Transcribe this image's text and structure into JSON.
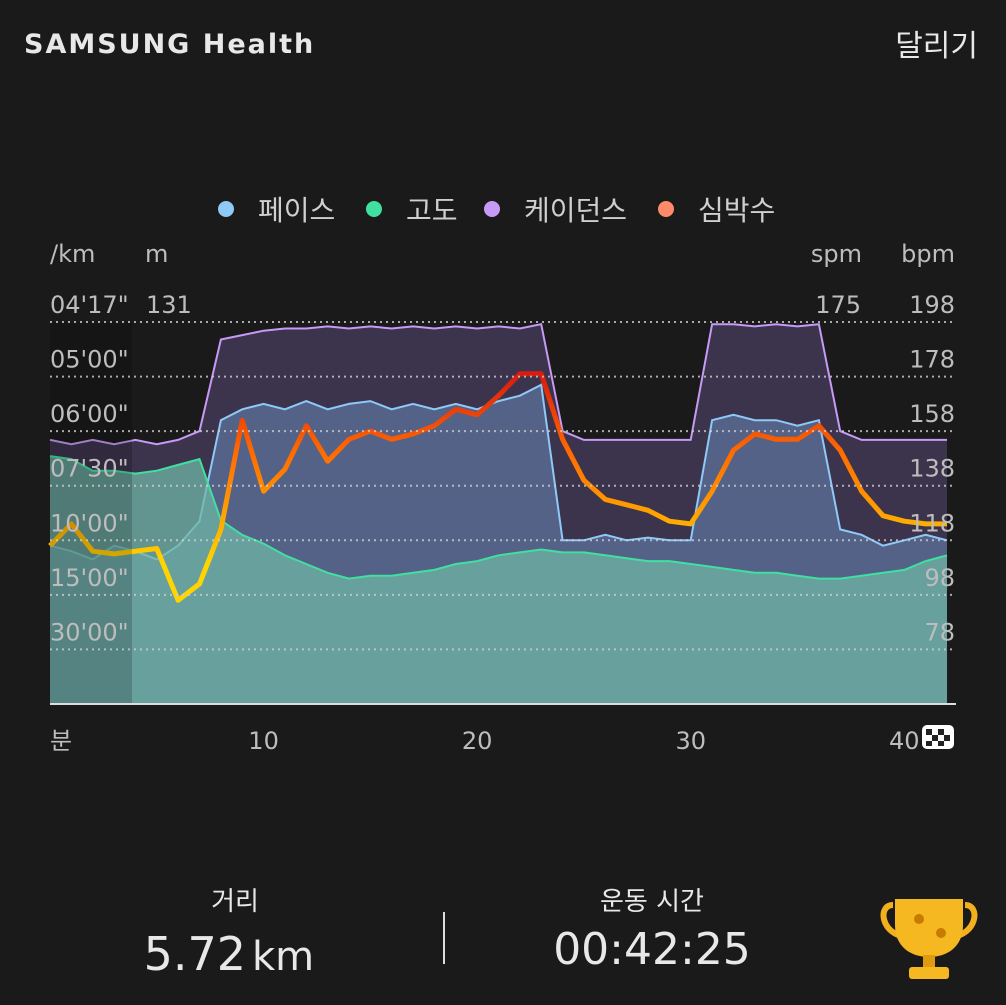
{
  "header": {
    "brand": "SAMSUNG Health",
    "activity": "달리기"
  },
  "chart_data": {
    "type": "line",
    "x": [
      0,
      1,
      2,
      3,
      4,
      5,
      6,
      7,
      8,
      9,
      10,
      11,
      12,
      13,
      14,
      15,
      16,
      17,
      18,
      19,
      20,
      21,
      22,
      23,
      24,
      25,
      26,
      27,
      28,
      29,
      30,
      31,
      32,
      33,
      34,
      35,
      36,
      37,
      38,
      39,
      40,
      41,
      42
    ],
    "xlim": [
      0,
      42.42
    ],
    "xticks": [
      10,
      20,
      30,
      40
    ],
    "x_label": "분",
    "series": [
      {
        "name": "케이던스",
        "unit": "spm",
        "axis": "spm",
        "color": "#c79af5",
        "values": [
          121,
          119,
          121,
          119,
          121,
          119,
          121,
          125,
          167,
          169,
          171,
          172,
          172,
          173,
          172,
          173,
          172,
          173,
          172,
          173,
          172,
          173,
          172,
          174,
          125,
          121,
          121,
          121,
          121,
          121,
          121,
          174,
          174,
          173,
          174,
          173,
          174,
          125,
          121,
          121,
          121,
          121,
          121
        ]
      },
      {
        "name": "페이스",
        "unit": "/km",
        "axis": "y",
        "color": "#8ec9f7",
        "values": [
          5.8,
          5.6,
          5.3,
          5.8,
          5.6,
          5.3,
          5.8,
          6.7,
          10.4,
          10.8,
          11.0,
          10.8,
          11.1,
          10.8,
          11.0,
          11.1,
          10.8,
          11.0,
          10.8,
          11.0,
          10.8,
          11.1,
          11.3,
          11.7,
          6.0,
          6.0,
          6.2,
          6.0,
          6.1,
          6.0,
          6.0,
          10.4,
          10.6,
          10.4,
          10.4,
          10.2,
          10.4,
          6.4,
          6.2,
          5.8,
          6.0,
          6.2,
          6.0
        ]
      },
      {
        "name": "고도",
        "unit": "m",
        "axis": "m",
        "color": "#3fe0a0",
        "values": [
          85,
          84,
          80,
          80,
          79,
          80,
          82,
          84,
          63,
          58,
          55,
          51,
          48,
          45,
          43,
          44,
          44,
          45,
          46,
          48,
          49,
          51,
          52,
          53,
          52,
          52,
          51,
          50,
          49,
          49,
          48,
          47,
          46,
          45,
          45,
          44,
          43,
          43,
          44,
          45,
          46,
          49,
          51
        ]
      },
      {
        "name": "심박수",
        "unit": "bpm",
        "axis": "y2",
        "color": "#ff8a6a",
        "values": [
          116,
          124,
          114,
          113,
          114,
          115,
          96,
          102,
          122,
          162,
          136,
          144,
          160,
          147,
          155,
          158,
          155,
          157,
          160,
          166,
          164,
          171,
          179,
          179,
          155,
          140,
          133,
          131,
          129,
          125,
          124,
          136,
          151,
          157,
          155,
          155,
          160,
          151,
          136,
          127,
          125,
          124,
          124
        ]
      }
    ],
    "ylim": [
      0,
      14
    ],
    "yticks": [
      {
        "value": 14,
        "label": "04'17\""
      },
      {
        "value": 12,
        "label": "05'00\""
      },
      {
        "value": 10,
        "label": "06'00\""
      },
      {
        "value": 8,
        "label": "07'30\""
      },
      {
        "value": 6,
        "label": "10'00\""
      },
      {
        "value": 4,
        "label": "15'00\""
      },
      {
        "value": 2,
        "label": "30'00\""
      }
    ],
    "mlim": [
      0,
      131
    ],
    "mticks": [
      131
    ],
    "spmlim": [
      0,
      175
    ],
    "spmticks": [
      175
    ],
    "y2lim": [
      58,
      198
    ],
    "y2ticks": [
      198,
      178,
      158,
      138,
      118,
      98,
      78
    ],
    "grid": true
  },
  "summary": {
    "distance_label": "거리",
    "distance": 5.72,
    "distance_unit": "km",
    "duration_label": "운동 시간",
    "duration": "00:42:25"
  }
}
